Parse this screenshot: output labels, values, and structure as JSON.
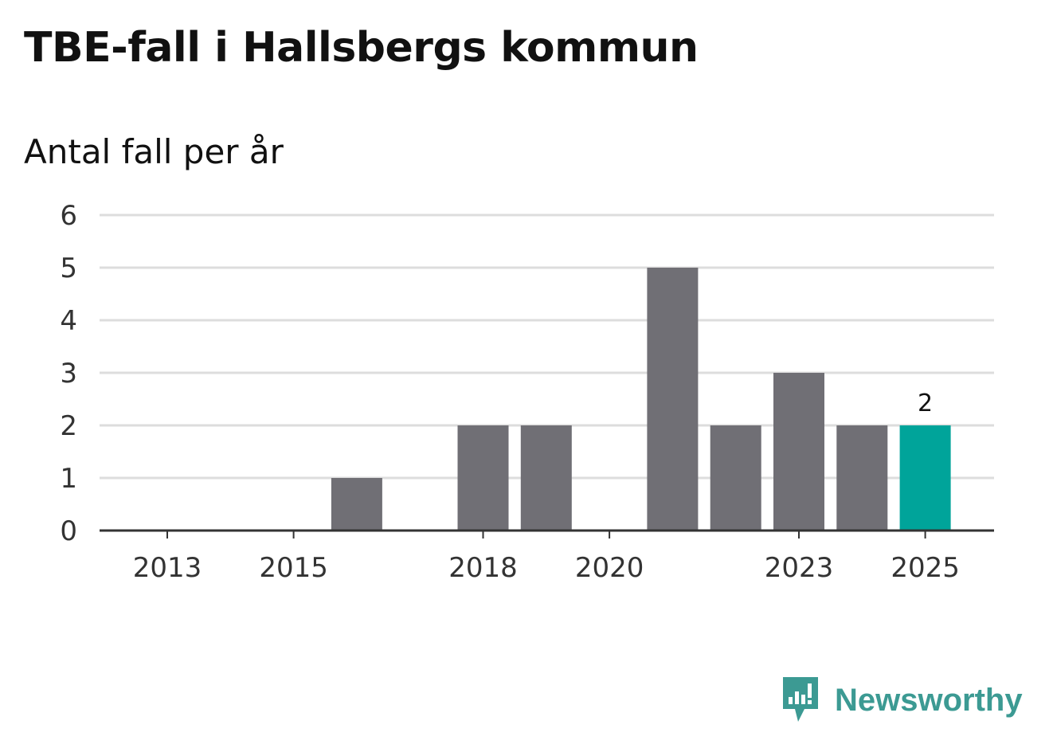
{
  "chart_data": {
    "type": "bar",
    "title": "TBE-fall i Hallsbergs kommun",
    "subtitle": "Antal fall per år",
    "xlabel": "",
    "ylabel": "",
    "ylim": [
      0,
      6
    ],
    "y_ticks": [
      "0",
      "1",
      "2",
      "3",
      "4",
      "5",
      "6"
    ],
    "categories": [
      2013,
      2014,
      2015,
      2016,
      2017,
      2018,
      2019,
      2020,
      2021,
      2022,
      2023,
      2024,
      2025
    ],
    "x_tick_labels": [
      "2013",
      "2015",
      "2018",
      "2020",
      "2023",
      "2025"
    ],
    "values": [
      0,
      0,
      0,
      1,
      0,
      2,
      2,
      0,
      5,
      2,
      3,
      2,
      2
    ],
    "highlight": {
      "category": 2025,
      "label": "2"
    },
    "grid": true
  },
  "colors": {
    "bar": "#706f75",
    "highlight": "#00a49a",
    "grid": "#dddddd",
    "axis": "#333333",
    "brand": "#3c9a93"
  },
  "brand": {
    "name": "Newsworthy",
    "icon": "newsworthy-logo-icon"
  }
}
